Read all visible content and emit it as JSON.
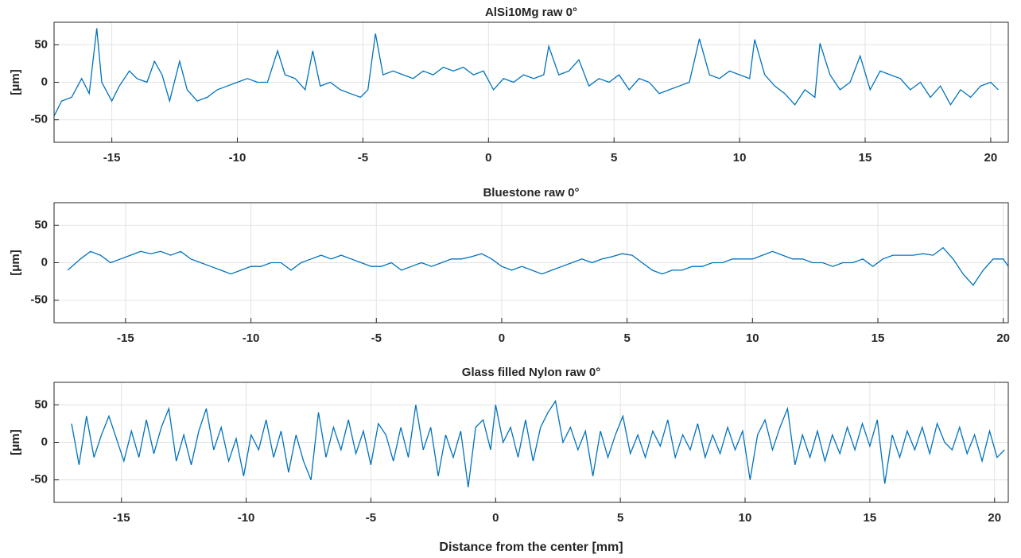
{
  "chart_data": [
    {
      "type": "line",
      "title": "AlSi10Mg raw 0°",
      "ylabel": "[μm]",
      "color": "#0072BD",
      "grid": true,
      "xlim": [
        -17.3,
        20.7
      ],
      "ylim": [
        -80,
        80
      ],
      "xticks": [
        -15,
        -10,
        -5,
        0,
        5,
        10,
        15,
        20
      ],
      "yticks": [
        -50,
        0,
        50
      ],
      "x": [
        -17.3,
        -17.0,
        -16.6,
        -16.2,
        -15.9,
        -15.6,
        -15.4,
        -15.0,
        -14.7,
        -14.3,
        -14.0,
        -13.6,
        -13.3,
        -13.0,
        -12.7,
        -12.3,
        -12.0,
        -11.6,
        -11.2,
        -10.8,
        -10.4,
        -10.0,
        -9.6,
        -9.2,
        -8.8,
        -8.4,
        -8.1,
        -7.7,
        -7.3,
        -7.0,
        -6.7,
        -6.3,
        -5.9,
        -5.5,
        -5.1,
        -4.8,
        -4.5,
        -4.2,
        -3.8,
        -3.4,
        -3.0,
        -2.6,
        -2.2,
        -1.8,
        -1.4,
        -1.0,
        -0.6,
        -0.2,
        0.2,
        0.6,
        1.0,
        1.4,
        1.8,
        2.2,
        2.4,
        2.8,
        3.2,
        3.6,
        4.0,
        4.4,
        4.8,
        5.2,
        5.6,
        6.0,
        6.4,
        6.8,
        7.2,
        7.6,
        8.0,
        8.4,
        8.8,
        9.2,
        9.6,
        10.0,
        10.4,
        10.6,
        11.0,
        11.4,
        11.8,
        12.2,
        12.6,
        13.0,
        13.2,
        13.6,
        14.0,
        14.4,
        14.8,
        15.2,
        15.6,
        16.0,
        16.4,
        16.8,
        17.2,
        17.6,
        18.0,
        18.4,
        18.8,
        19.2,
        19.6,
        20.0,
        20.3
      ],
      "values": [
        -45,
        -25,
        -20,
        5,
        -15,
        72,
        0,
        -25,
        -5,
        15,
        5,
        0,
        28,
        10,
        -25,
        28,
        -10,
        -25,
        -20,
        -10,
        -5,
        0,
        5,
        0,
        0,
        42,
        10,
        5,
        -10,
        42,
        -5,
        0,
        -10,
        -15,
        -20,
        -10,
        65,
        10,
        15,
        10,
        5,
        15,
        10,
        20,
        15,
        20,
        10,
        15,
        -10,
        5,
        0,
        10,
        5,
        10,
        48,
        10,
        15,
        30,
        -5,
        5,
        0,
        10,
        -10,
        5,
        0,
        -15,
        -10,
        -5,
        0,
        58,
        10,
        5,
        15,
        10,
        5,
        57,
        10,
        -5,
        -15,
        -30,
        -10,
        -20,
        52,
        10,
        -10,
        0,
        35,
        -10,
        15,
        10,
        5,
        -10,
        0,
        -20,
        -5,
        -30,
        -10,
        -20,
        -5,
        0,
        -10
      ]
    },
    {
      "type": "line",
      "title": "Bluestone raw 0°",
      "ylabel": "[μm]",
      "color": "#0072BD",
      "grid": true,
      "xlim": [
        -17.85,
        20.2
      ],
      "ylim": [
        -80,
        80
      ],
      "xticks": [
        -15,
        -10,
        -5,
        0,
        5,
        10,
        15,
        20
      ],
      "yticks": [
        -50,
        0,
        50
      ],
      "x": [
        -17.3,
        -16.8,
        -16.4,
        -16.0,
        -15.6,
        -15.2,
        -14.8,
        -14.4,
        -14.0,
        -13.6,
        -13.2,
        -12.8,
        -12.4,
        -12.0,
        -11.6,
        -11.2,
        -10.8,
        -10.4,
        -10.0,
        -9.6,
        -9.2,
        -8.8,
        -8.4,
        -8.0,
        -7.6,
        -7.2,
        -6.8,
        -6.4,
        -6.0,
        -5.6,
        -5.2,
        -4.8,
        -4.4,
        -4.0,
        -3.6,
        -3.2,
        -2.8,
        -2.4,
        -2.0,
        -1.6,
        -1.2,
        -0.8,
        -0.4,
        0.0,
        0.4,
        0.8,
        1.2,
        1.6,
        2.0,
        2.4,
        2.8,
        3.2,
        3.6,
        4.0,
        4.4,
        4.8,
        5.2,
        5.6,
        6.0,
        6.4,
        6.8,
        7.2,
        7.6,
        8.0,
        8.4,
        8.8,
        9.2,
        9.6,
        10.0,
        10.4,
        10.8,
        11.2,
        11.6,
        12.0,
        12.4,
        12.8,
        13.2,
        13.6,
        14.0,
        14.4,
        14.8,
        15.2,
        15.6,
        16.0,
        16.4,
        16.8,
        17.2,
        17.6,
        18.0,
        18.4,
        18.8,
        19.2,
        19.6,
        20.0,
        20.2
      ],
      "values": [
        -10,
        5,
        15,
        10,
        0,
        5,
        10,
        15,
        12,
        15,
        10,
        15,
        5,
        0,
        -5,
        -10,
        -15,
        -10,
        -5,
        -5,
        0,
        0,
        -10,
        0,
        5,
        10,
        5,
        10,
        5,
        0,
        -5,
        -5,
        0,
        -10,
        -5,
        0,
        -5,
        0,
        5,
        5,
        8,
        12,
        5,
        -5,
        -10,
        -5,
        -10,
        -15,
        -10,
        -5,
        0,
        5,
        0,
        5,
        8,
        12,
        10,
        0,
        -10,
        -15,
        -10,
        -10,
        -5,
        -5,
        0,
        0,
        5,
        5,
        5,
        10,
        15,
        10,
        5,
        5,
        0,
        0,
        -5,
        0,
        0,
        5,
        -5,
        5,
        10,
        10,
        10,
        12,
        10,
        20,
        5,
        -15,
        -30,
        -10,
        5,
        5,
        -5
      ]
    },
    {
      "type": "line",
      "title": "Glass filled Nylon raw 0°",
      "ylabel": "[μm]",
      "xlabel": "Distance from the center [mm]",
      "color": "#0072BD",
      "grid": true,
      "xlim": [
        -17.7,
        20.55
      ],
      "ylim": [
        -80,
        80
      ],
      "xticks": [
        -15,
        -10,
        -5,
        0,
        5,
        10,
        15,
        20
      ],
      "yticks": [
        -50,
        0,
        50
      ],
      "x": [
        -17.0,
        -16.7,
        -16.4,
        -16.1,
        -15.8,
        -15.5,
        -15.2,
        -14.9,
        -14.6,
        -14.3,
        -14.0,
        -13.7,
        -13.4,
        -13.1,
        -12.8,
        -12.5,
        -12.2,
        -11.9,
        -11.6,
        -11.3,
        -11.0,
        -10.7,
        -10.4,
        -10.1,
        -9.8,
        -9.5,
        -9.2,
        -8.9,
        -8.6,
        -8.3,
        -8.0,
        -7.7,
        -7.4,
        -7.1,
        -6.8,
        -6.5,
        -6.2,
        -5.9,
        -5.6,
        -5.3,
        -5.0,
        -4.7,
        -4.4,
        -4.1,
        -3.8,
        -3.5,
        -3.2,
        -2.9,
        -2.6,
        -2.3,
        -2.0,
        -1.7,
        -1.4,
        -1.1,
        -0.8,
        -0.5,
        -0.2,
        0.0,
        0.3,
        0.6,
        0.9,
        1.2,
        1.5,
        1.8,
        2.1,
        2.4,
        2.7,
        3.0,
        3.3,
        3.6,
        3.9,
        4.2,
        4.5,
        4.8,
        5.1,
        5.4,
        5.7,
        6.0,
        6.3,
        6.6,
        6.9,
        7.2,
        7.5,
        7.8,
        8.1,
        8.4,
        8.7,
        9.0,
        9.3,
        9.6,
        9.9,
        10.2,
        10.5,
        10.8,
        11.1,
        11.4,
        11.7,
        12.0,
        12.3,
        12.6,
        12.9,
        13.2,
        13.5,
        13.8,
        14.1,
        14.4,
        14.7,
        15.0,
        15.3,
        15.6,
        15.9,
        16.2,
        16.5,
        16.8,
        17.1,
        17.4,
        17.7,
        18.0,
        18.3,
        18.6,
        18.9,
        19.2,
        19.5,
        19.8,
        20.1,
        20.4
      ],
      "values": [
        25,
        -30,
        35,
        -20,
        10,
        35,
        5,
        -25,
        15,
        -20,
        30,
        -15,
        20,
        45,
        -25,
        10,
        -30,
        15,
        45,
        -10,
        20,
        -25,
        5,
        -45,
        10,
        -10,
        30,
        -20,
        15,
        -40,
        10,
        -25,
        -50,
        40,
        -20,
        20,
        -10,
        30,
        -15,
        15,
        -30,
        25,
        10,
        -25,
        20,
        -20,
        50,
        -10,
        20,
        -45,
        10,
        -20,
        15,
        -60,
        20,
        30,
        -10,
        50,
        0,
        20,
        -20,
        30,
        -25,
        20,
        40,
        55,
        0,
        20,
        -10,
        15,
        -45,
        15,
        -20,
        10,
        35,
        -15,
        10,
        -20,
        15,
        -5,
        30,
        -20,
        10,
        -10,
        25,
        -20,
        10,
        -15,
        20,
        -10,
        15,
        -50,
        10,
        30,
        -10,
        20,
        45,
        -30,
        10,
        -20,
        15,
        -25,
        10,
        -15,
        20,
        -10,
        25,
        -5,
        30,
        -55,
        10,
        -20,
        15,
        -10,
        20,
        -15,
        25,
        0,
        -10,
        20,
        -15,
        10,
        -25,
        15,
        -20,
        -10
      ]
    }
  ]
}
